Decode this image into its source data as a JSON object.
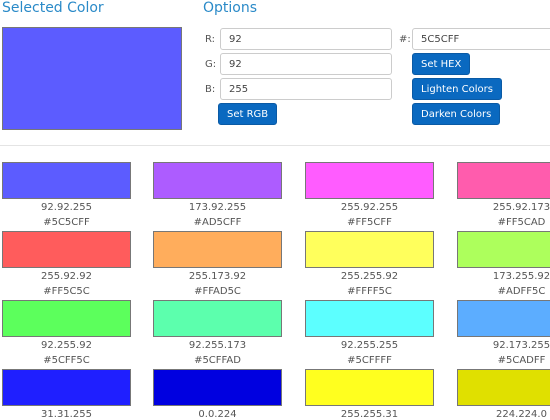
{
  "selected": {
    "title": "Selected Color",
    "color": "#5C5CFF"
  },
  "options": {
    "title": "Options",
    "fields": [
      {
        "label": "R:",
        "value": "92"
      },
      {
        "label": "G:",
        "value": "92"
      },
      {
        "label": "B:",
        "value": "255"
      }
    ],
    "hex": {
      "label": "#:",
      "value": "5C5CFF"
    },
    "buttons": {
      "set_rgb": "Set RGB",
      "set_hex": "Set HEX",
      "lighten": "Lighten Colors",
      "darken": "Darken Colors"
    }
  },
  "swatches": [
    {
      "color": "#5C5CFF",
      "rgb": "92.92.255",
      "hex": "#5C5CFF"
    },
    {
      "color": "#AD5CFF",
      "rgb": "173.92.255",
      "hex": "#AD5CFF"
    },
    {
      "color": "#FF5CFF",
      "rgb": "255.92.255",
      "hex": "#FF5CFF"
    },
    {
      "color": "#FF5CAD",
      "rgb": "255.92.173",
      "hex": "#FF5CAD"
    },
    {
      "color": "#FF5C5C",
      "rgb": "255.92.92",
      "hex": "#FF5C5C"
    },
    {
      "color": "#FFAD5C",
      "rgb": "255.173.92",
      "hex": "#FFAD5C"
    },
    {
      "color": "#FFFF5C",
      "rgb": "255.255.92",
      "hex": "#FFFF5C"
    },
    {
      "color": "#ADFF5C",
      "rgb": "173.255.92",
      "hex": "#ADFF5C"
    },
    {
      "color": "#5CFF5C",
      "rgb": "92.255.92",
      "hex": "#5CFF5C"
    },
    {
      "color": "#5CFFAD",
      "rgb": "92.255.173",
      "hex": "#5CFFAD"
    },
    {
      "color": "#5CFFFF",
      "rgb": "92.255.255",
      "hex": "#5CFFFF"
    },
    {
      "color": "#5CADFF",
      "rgb": "92.173.255",
      "hex": "#5CADFF"
    },
    {
      "color": "#1F1FFF",
      "rgb": "31.31.255"
    },
    {
      "color": "#0000E0",
      "rgb": "0.0.224"
    },
    {
      "color": "#FFFF1F",
      "rgb": "255.255.31"
    },
    {
      "color": "#E0E000",
      "rgb": "224.224.0"
    }
  ]
}
